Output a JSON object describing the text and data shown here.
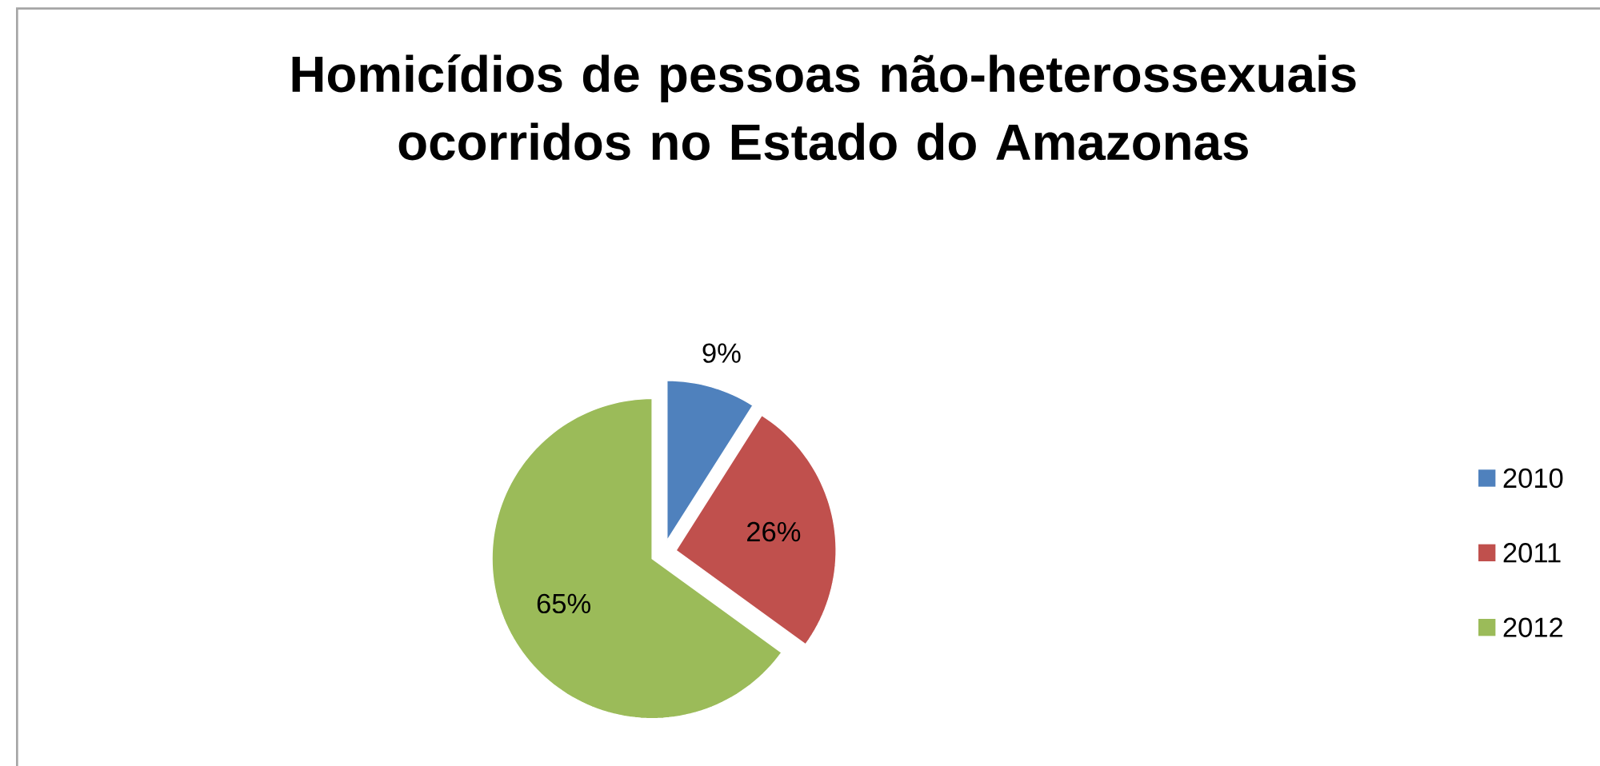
{
  "chart_data": {
    "type": "pie",
    "title": "Homicídios de pessoas não-heterossexuais ocorridos no Estado do Amazonas",
    "categories": [
      "2010",
      "2011",
      "2012"
    ],
    "values": [
      9,
      26,
      65
    ],
    "value_labels": [
      "9%",
      "26%",
      "65%"
    ],
    "colors": [
      "#4f81bd",
      "#c0504d",
      "#9bbb59"
    ],
    "legend": "right"
  }
}
